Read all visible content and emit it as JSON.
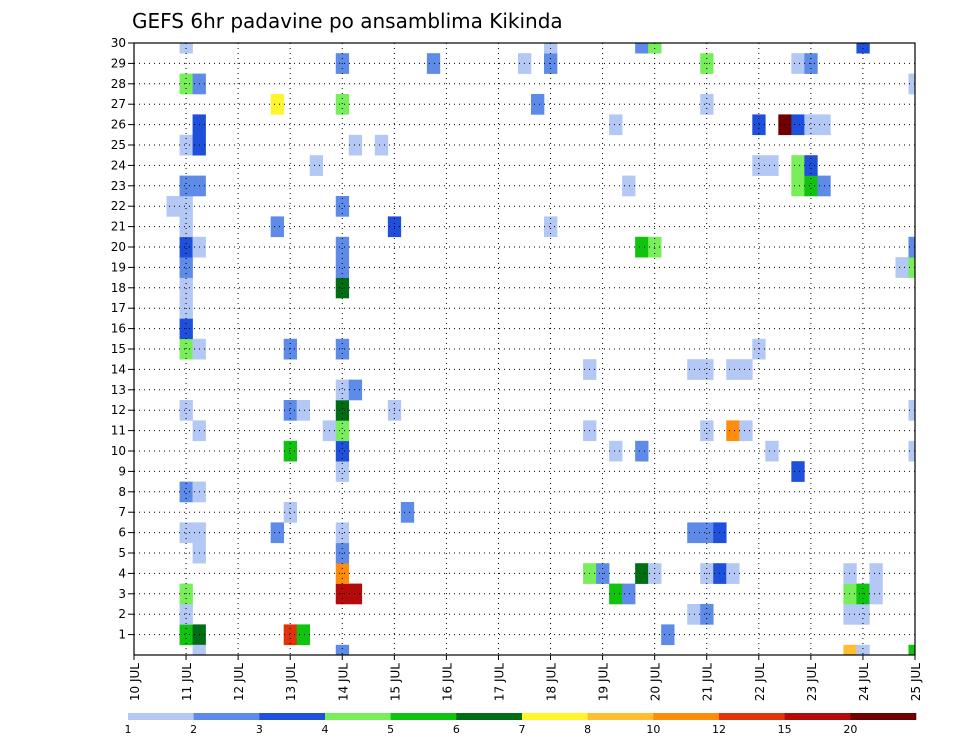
{
  "chart_data": {
    "type": "heatmap",
    "title": "GEFS 6hr padavine po ansamblima Kikinda",
    "xlabel": "",
    "ylabel": "",
    "x_ticks": [
      "10 JUL",
      "11 JUL",
      "12 JUL",
      "13 JUL",
      "14 JUL",
      "15 JUL",
      "16 JUL",
      "17 JUL",
      "18 JUL",
      "19 JUL",
      "20 JUL",
      "21 JUL",
      "22 JUL",
      "23 JUL",
      "24 JUL",
      "25 JUL"
    ],
    "y_ticks": [
      "1",
      "2",
      "3",
      "4",
      "5",
      "6",
      "7",
      "8",
      "9",
      "10",
      "11",
      "12",
      "13",
      "14",
      "15",
      "16",
      "17",
      "18",
      "19",
      "20",
      "21",
      "22",
      "23",
      "24",
      "25",
      "26",
      "27",
      "28",
      "29",
      "30"
    ],
    "xlim_days": [
      10,
      25
    ],
    "ylim": [
      0,
      30
    ],
    "step_hours": 6,
    "grid": true,
    "colorbar": {
      "labels": [
        "1",
        "2",
        "3",
        "4",
        "5",
        "6",
        "7",
        "8",
        "10",
        "12",
        "15",
        "20"
      ],
      "colors": [
        "#b4c8f5",
        "#5f8be8",
        "#1e50dc",
        "#78ee5a",
        "#0fc30f",
        "#006c14",
        "#fff52d",
        "#ffbe32",
        "#ff8c0a",
        "#e1320a",
        "#b40a0a",
        "#6e0000"
      ]
    },
    "cells": [
      [
        11,
        1,
        5
      ],
      [
        11.25,
        1,
        6
      ],
      [
        13,
        1,
        10
      ],
      [
        13.25,
        1,
        5
      ],
      [
        20.25,
        1,
        2
      ],
      [
        11,
        2,
        1
      ],
      [
        20.75,
        2,
        1
      ],
      [
        21,
        2,
        2
      ],
      [
        23.75,
        2,
        1
      ],
      [
        24,
        2,
        1
      ],
      [
        11,
        3,
        4
      ],
      [
        14,
        3,
        11
      ],
      [
        14.25,
        3,
        11
      ],
      [
        19.25,
        3,
        5
      ],
      [
        19.5,
        3,
        2
      ],
      [
        23.75,
        3,
        4
      ],
      [
        24,
        3,
        5
      ],
      [
        24.25,
        3,
        1
      ],
      [
        14,
        4,
        9
      ],
      [
        18.75,
        4,
        4
      ],
      [
        19,
        4,
        2
      ],
      [
        19.75,
        4,
        6
      ],
      [
        20,
        4,
        1
      ],
      [
        21,
        4,
        1
      ],
      [
        21.25,
        4,
        3
      ],
      [
        21.5,
        4,
        1
      ],
      [
        23.75,
        4,
        1
      ],
      [
        24.25,
        4,
        1
      ],
      [
        11.25,
        5,
        1
      ],
      [
        14,
        5,
        2
      ],
      [
        11,
        6,
        1
      ],
      [
        11.25,
        6,
        1
      ],
      [
        12.75,
        6,
        2
      ],
      [
        14,
        6,
        1
      ],
      [
        20.75,
        6,
        2
      ],
      [
        21,
        6,
        2
      ],
      [
        21.25,
        6,
        3
      ],
      [
        13,
        7,
        1
      ],
      [
        15.25,
        7,
        2
      ],
      [
        11,
        8,
        2
      ],
      [
        11.25,
        8,
        1
      ],
      [
        14,
        9,
        1
      ],
      [
        22.75,
        9,
        3
      ],
      [
        13,
        10,
        5
      ],
      [
        14,
        10,
        3
      ],
      [
        19.25,
        10,
        1
      ],
      [
        19.75,
        10,
        2
      ],
      [
        22.25,
        10,
        1
      ],
      [
        25,
        10,
        1
      ],
      [
        11.25,
        11,
        1
      ],
      [
        13.75,
        11,
        1
      ],
      [
        14,
        11,
        4
      ],
      [
        18.75,
        11,
        1
      ],
      [
        21,
        11,
        1
      ],
      [
        21.5,
        11,
        9
      ],
      [
        21.75,
        11,
        1
      ],
      [
        11,
        12,
        1
      ],
      [
        13,
        12,
        2
      ],
      [
        13.25,
        12,
        1
      ],
      [
        14,
        12,
        6
      ],
      [
        15,
        12,
        1
      ],
      [
        25,
        12,
        1
      ],
      [
        14,
        13,
        1
      ],
      [
        14.25,
        13,
        2
      ],
      [
        18.75,
        14,
        1
      ],
      [
        20.75,
        14,
        1
      ],
      [
        21,
        14,
        1
      ],
      [
        21.5,
        14,
        1
      ],
      [
        21.75,
        14,
        1
      ],
      [
        11,
        15,
        4
      ],
      [
        11.25,
        15,
        1
      ],
      [
        13,
        15,
        2
      ],
      [
        14,
        15,
        2
      ],
      [
        22,
        15,
        1
      ],
      [
        11,
        16,
        3
      ],
      [
        11,
        17,
        1
      ],
      [
        11,
        18,
        1
      ],
      [
        14,
        18,
        6
      ],
      [
        11,
        19,
        2
      ],
      [
        14,
        19,
        2
      ],
      [
        24.75,
        19,
        1
      ],
      [
        25,
        19,
        4
      ],
      [
        11,
        20,
        3
      ],
      [
        11.25,
        20,
        1
      ],
      [
        14,
        20,
        2
      ],
      [
        19.75,
        20,
        5
      ],
      [
        20,
        20,
        4
      ],
      [
        25,
        20,
        2
      ],
      [
        11,
        21,
        1
      ],
      [
        12.75,
        21,
        2
      ],
      [
        15,
        21,
        3
      ],
      [
        18,
        21,
        1
      ],
      [
        10.75,
        22,
        1
      ],
      [
        11,
        22,
        1
      ],
      [
        14,
        22,
        2
      ],
      [
        11,
        23,
        2
      ],
      [
        11.25,
        23,
        2
      ],
      [
        19.5,
        23,
        1
      ],
      [
        22.75,
        23,
        4
      ],
      [
        23,
        23,
        5
      ],
      [
        23.25,
        23,
        2
      ],
      [
        13.5,
        24,
        1
      ],
      [
        22,
        24,
        1
      ],
      [
        22.25,
        24,
        1
      ],
      [
        22.75,
        24,
        4
      ],
      [
        23,
        24,
        3
      ],
      [
        11,
        25,
        1
      ],
      [
        11.25,
        25,
        3
      ],
      [
        14.25,
        25,
        1
      ],
      [
        14.75,
        25,
        1
      ],
      [
        11.25,
        26,
        3
      ],
      [
        19.25,
        26,
        1
      ],
      [
        22,
        26,
        3
      ],
      [
        22.5,
        26,
        12
      ],
      [
        22.75,
        26,
        3
      ],
      [
        23,
        26,
        1
      ],
      [
        23.25,
        26,
        1
      ],
      [
        12.75,
        27,
        7
      ],
      [
        14,
        27,
        4
      ],
      [
        17.75,
        27,
        2
      ],
      [
        21,
        27,
        1
      ],
      [
        11,
        28,
        4
      ],
      [
        11.25,
        28,
        2
      ],
      [
        25,
        28,
        1
      ],
      [
        14,
        29,
        2
      ],
      [
        15.75,
        29,
        2
      ],
      [
        17.5,
        29,
        1
      ],
      [
        18,
        29,
        2
      ],
      [
        21,
        29,
        4
      ],
      [
        22.75,
        29,
        1
      ],
      [
        23,
        29,
        2
      ],
      [
        11,
        30,
        1
      ],
      [
        18,
        30,
        1
      ],
      [
        19.75,
        30,
        2
      ],
      [
        20,
        30,
        4
      ],
      [
        24,
        30,
        3
      ],
      [
        11.25,
        0,
        1
      ],
      [
        14,
        0,
        2
      ],
      [
        23.75,
        0,
        8
      ],
      [
        24,
        0,
        1
      ],
      [
        25,
        0,
        5
      ]
    ]
  }
}
